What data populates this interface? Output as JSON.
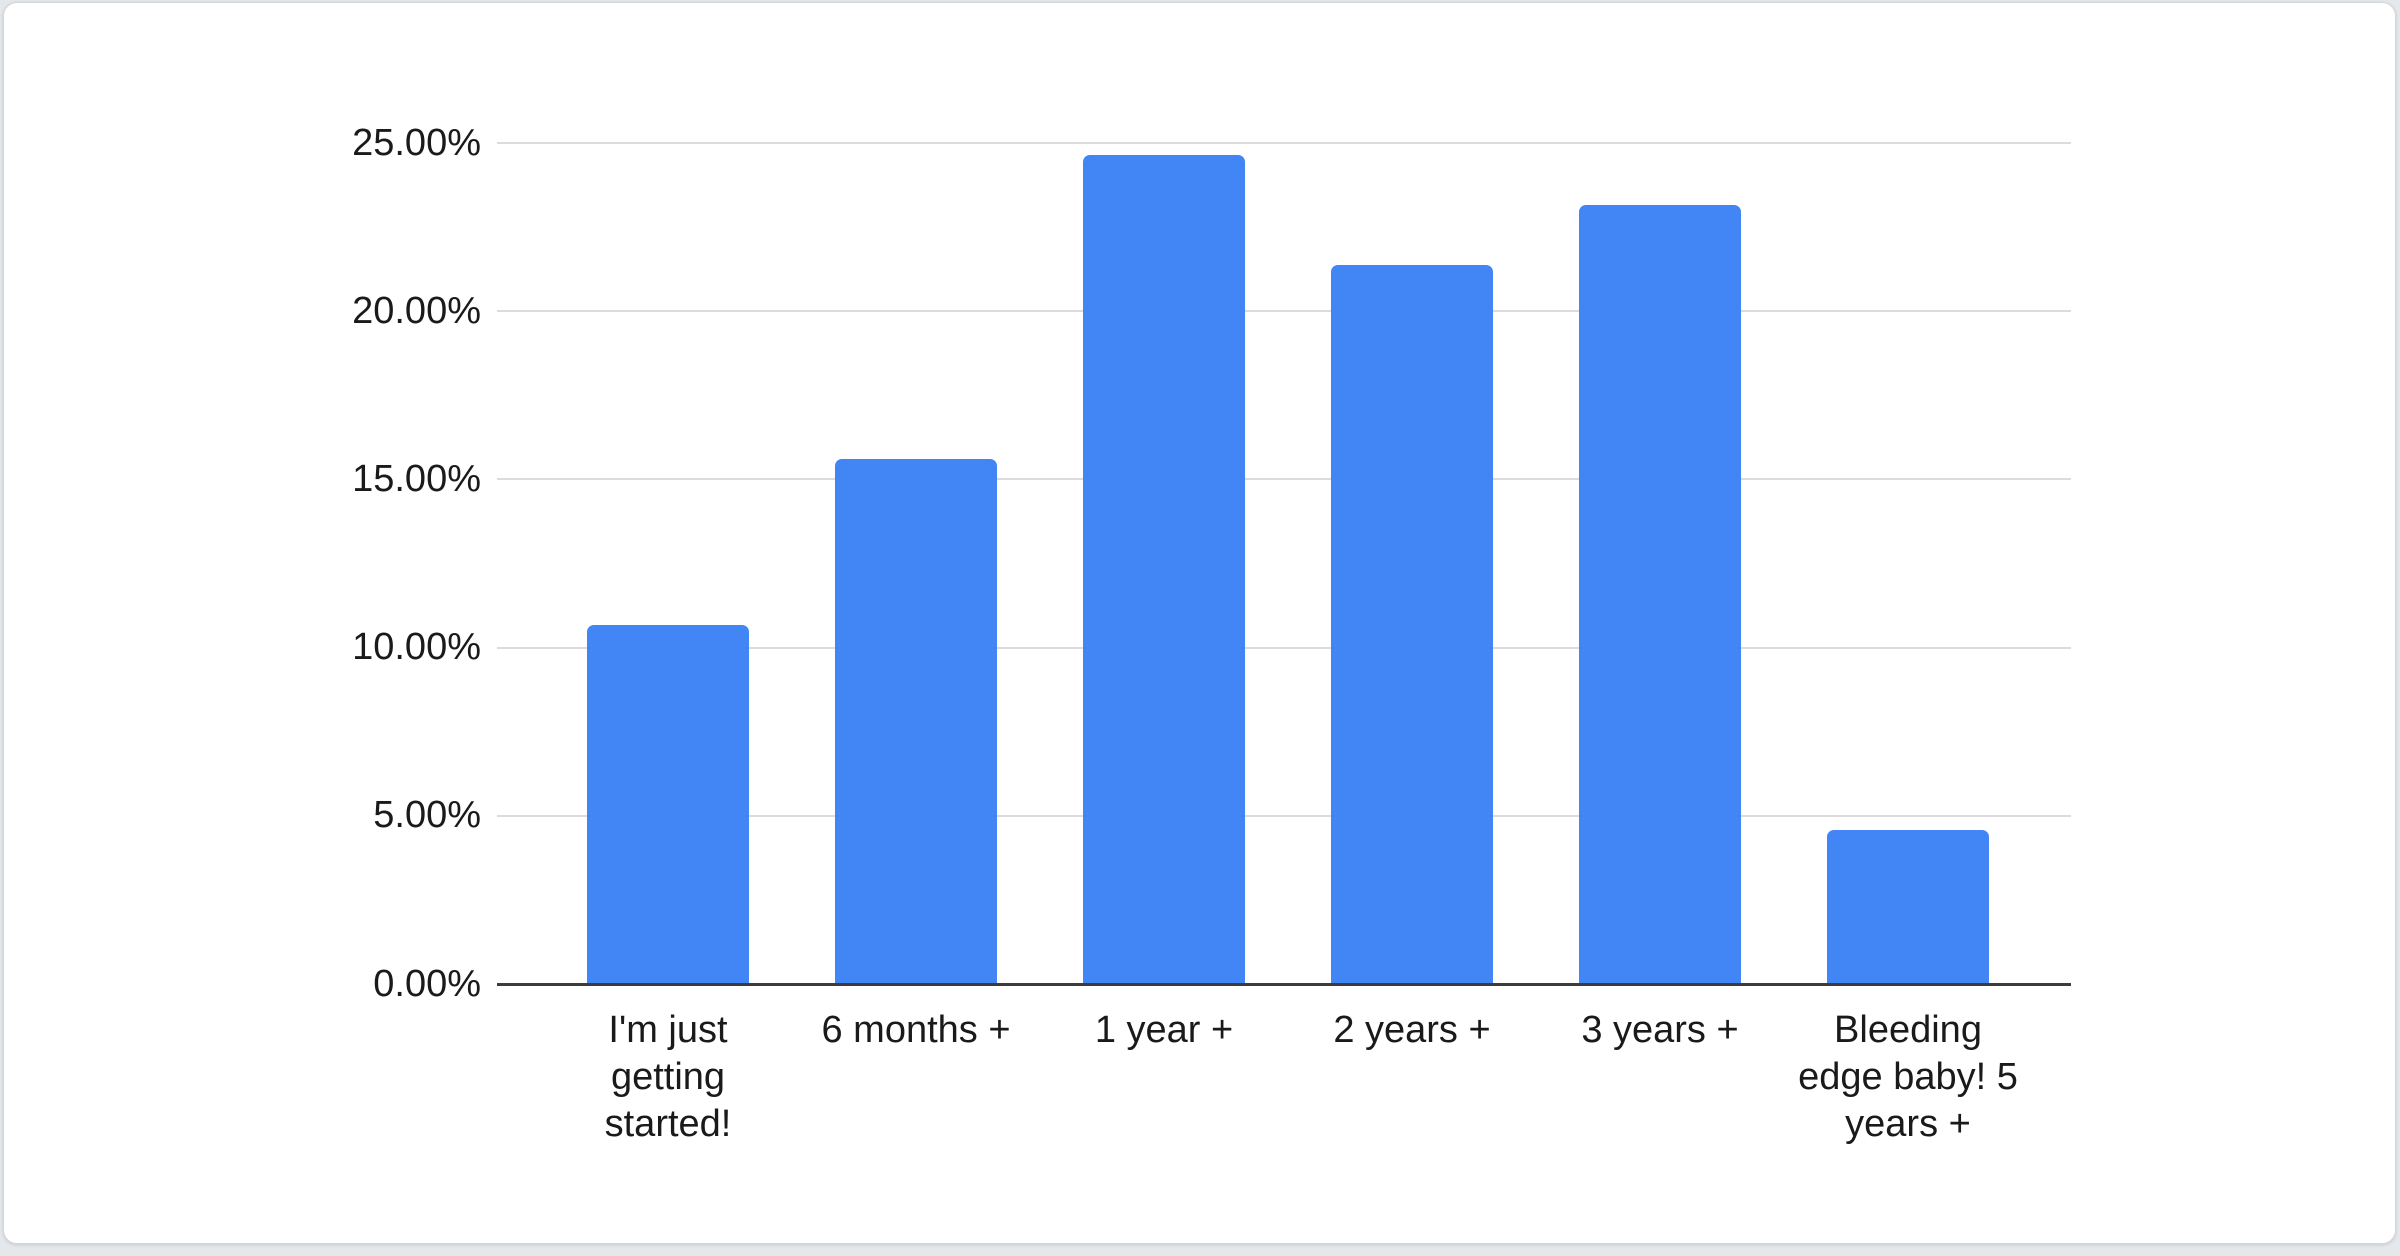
{
  "page": {
    "background_color": "#e5e8eb"
  },
  "card": {
    "background_color": "#ffffff",
    "border_color": "#d3d7db"
  },
  "chart_data": {
    "type": "bar",
    "title": "",
    "xlabel": "",
    "ylabel": "",
    "categories": [
      "I'm just getting started!",
      "6 months +",
      "1 year +",
      "2 years +",
      "3 years +",
      "Bleeding edge baby! 5 years +"
    ],
    "values": [
      10.66,
      15.6,
      24.64,
      21.38,
      23.16,
      4.58
    ],
    "value_unit": "percent",
    "bar_color": "#4285F4",
    "y_ticks": [
      "0.00%",
      "5.00%",
      "10.00%",
      "15.00%",
      "20.00%",
      "25.00%"
    ],
    "ylim": [
      0,
      25
    ],
    "y_tick_step": 5,
    "grid": true,
    "gridline_color": "#dcdcdc",
    "axis_line_color": "#3c3c3c",
    "label_color": "#1a1a1a",
    "legend_position": "none"
  }
}
